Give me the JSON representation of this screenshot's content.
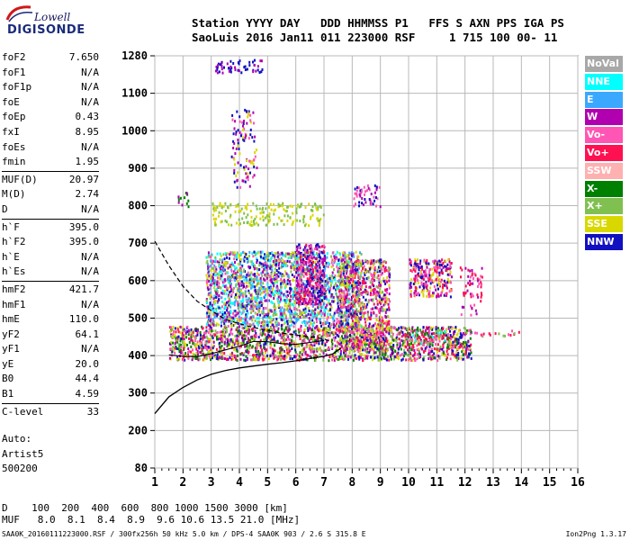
{
  "logo": {
    "line1": "Lowell",
    "line2": "DIGISONDE"
  },
  "header": {
    "line1": "Station YYYY DAY   DDD HHMMSS P1   FFS S AXN PPS IGA PS",
    "line2": "SaoLuis 2016 Jan11 011 223000 RSF     1 715 100 00- 11"
  },
  "params": {
    "group1": [
      {
        "name": "foF2",
        "value": "7.650"
      },
      {
        "name": "foF1",
        "value": "N/A"
      },
      {
        "name": "foF1p",
        "value": "N/A"
      },
      {
        "name": "foE",
        "value": "N/A"
      },
      {
        "name": "foEp",
        "value": "0.43"
      },
      {
        "name": "fxI",
        "value": "8.95"
      },
      {
        "name": "foEs",
        "value": "N/A"
      },
      {
        "name": "fmin",
        "value": "1.95"
      }
    ],
    "group2": [
      {
        "name": "MUF(D)",
        "value": "20.97"
      },
      {
        "name": "M(D)",
        "value": "2.74"
      },
      {
        "name": "D",
        "value": "N/A"
      }
    ],
    "group3": [
      {
        "name": "h`F",
        "value": "395.0"
      },
      {
        "name": "h`F2",
        "value": "395.0"
      },
      {
        "name": "h`E",
        "value": "N/A"
      },
      {
        "name": "h`Es",
        "value": "N/A"
      }
    ],
    "group4": [
      {
        "name": "hmF2",
        "value": "421.7"
      },
      {
        "name": "hmF1",
        "value": "N/A"
      },
      {
        "name": "hmE",
        "value": "110.0"
      },
      {
        "name": "yF2",
        "value": "64.1"
      },
      {
        "name": "yF1",
        "value": "N/A"
      },
      {
        "name": "yE",
        "value": "20.0"
      },
      {
        "name": "B0",
        "value": "44.4"
      },
      {
        "name": "B1",
        "value": "4.59"
      }
    ],
    "group5": [
      {
        "name": "C-level",
        "value": "33"
      }
    ]
  },
  "auto": {
    "line1": "Auto:",
    "line2": "Artist5",
    "line3": "500200"
  },
  "legend": [
    {
      "label": "NoVal",
      "color": "#a8a8a8"
    },
    {
      "label": "NNE",
      "color": "#00ffff"
    },
    {
      "label": "E",
      "color": "#3aa8ff"
    },
    {
      "label": "W",
      "color": "#b000b0"
    },
    {
      "label": "Vo-",
      "color": "#ff55b4"
    },
    {
      "label": "Vo+",
      "color": "#ff1050"
    },
    {
      "label": "SSW",
      "color": "#ffb0b0"
    },
    {
      "label": "X-",
      "color": "#008000"
    },
    {
      "label": "X+",
      "color": "#80c050"
    },
    {
      "label": "SSE",
      "color": "#d8d800"
    },
    {
      "label": "NNW",
      "color": "#1010c0"
    }
  ],
  "bottom": {
    "line1": "D    100  200  400  600  800 1000 1500 3000 [km]",
    "line2": "MUF   8.0  8.1  8.4  8.9  9.6 10.6 13.5 21.0 [MHz]"
  },
  "footer": {
    "left": "SAA0K_20160111223000.RSF / 300fx256h 50 kHz 5.0 km / DPS-4 SAA0K 903 / 2.6 S 315.8 E",
    "right": "Ion2Png 1.3.17"
  },
  "chart_data": {
    "type": "scatter",
    "title": "",
    "xlabel": "",
    "ylabel": "",
    "xlim": [
      1,
      16
    ],
    "ylim": [
      80,
      1280
    ],
    "x_ticks": [
      "1",
      "2",
      "3",
      "4",
      "5",
      "6",
      "7",
      "8",
      "9",
      "10",
      "11",
      "12",
      "13",
      "14",
      "15",
      "16"
    ],
    "y_ticks": [
      "80",
      "200",
      "300",
      "400",
      "500",
      "600",
      "700",
      "800",
      "900",
      "1000",
      "1100",
      "1280"
    ],
    "y_tick_values": [
      80,
      200,
      300,
      400,
      500,
      600,
      700,
      800,
      900,
      1000,
      1100,
      1280
    ],
    "grid": true,
    "traced_profile": {
      "name": "profile",
      "x": [
        1.0,
        1.5,
        2.0,
        2.5,
        3.0,
        3.5,
        4.0,
        4.5,
        5.0,
        5.5,
        6.0,
        6.5,
        7.0,
        7.3,
        7.6
      ],
      "y": [
        245,
        290,
        315,
        335,
        350,
        360,
        367,
        372,
        377,
        381,
        386,
        392,
        398,
        404,
        420
      ]
    },
    "model_curve": {
      "name": "model",
      "x": [
        1.0,
        1.5,
        2.0,
        2.5,
        3.0,
        3.5,
        4.0,
        4.5,
        5.0,
        5.5,
        6.0,
        6.5,
        7.0,
        7.3
      ],
      "y": [
        705,
        640,
        585,
        545,
        520,
        497,
        485,
        475,
        468,
        460,
        455,
        450,
        445,
        435
      ]
    },
    "trace_solid": {
      "name": "trace",
      "x": [
        1.5,
        2.0,
        2.5,
        3.0,
        3.5,
        4.0,
        4.5,
        5.0,
        5.5,
        6.0,
        6.5,
        7.0
      ],
      "y": [
        402,
        398,
        397,
        405,
        415,
        425,
        438,
        437,
        432,
        430,
        435,
        440
      ]
    },
    "echo_clusters": [
      {
        "x": [
          1.5,
          12.2
        ],
        "y": [
          390,
          480
        ],
        "density": 0.9,
        "colors": [
          "#ff1050",
          "#ff55b4",
          "#80c050",
          "#d8d800",
          "#b000b0",
          "#1010c0",
          "#008000"
        ]
      },
      {
        "x": [
          2.8,
          8.3
        ],
        "y": [
          480,
          680
        ],
        "density": 0.9,
        "colors": [
          "#1010c0",
          "#b000b0",
          "#d8d800",
          "#ff55b4",
          "#3aa8ff",
          "#00ffff",
          "#80c050"
        ]
      },
      {
        "x": [
          6.0,
          7.0
        ],
        "y": [
          540,
          700
        ],
        "density": 0.9,
        "colors": [
          "#b000b0",
          "#ff55b4",
          "#ff1050",
          "#1010c0"
        ]
      },
      {
        "x": [
          7.5,
          9.3
        ],
        "y": [
          420,
          660
        ],
        "density": 0.8,
        "colors": [
          "#d8d800",
          "#ff1050",
          "#ff55b4",
          "#b000b0",
          "#1010c0",
          "#80c050"
        ]
      },
      {
        "x": [
          10.0,
          11.5
        ],
        "y": [
          560,
          660
        ],
        "density": 0.8,
        "colors": [
          "#ff55b4",
          "#b000b0",
          "#ff1050",
          "#d8d800",
          "#1010c0"
        ]
      },
      {
        "x": [
          10.0,
          11.3
        ],
        "y": [
          430,
          470
        ],
        "density": 0.6,
        "colors": [
          "#ff1050",
          "#ff55b4",
          "#80c050",
          "#008000",
          "#00ffff"
        ]
      },
      {
        "x": [
          3.0,
          7.0
        ],
        "y": [
          750,
          810
        ],
        "density": 0.35,
        "colors": [
          "#d8d800",
          "#80c050"
        ]
      },
      {
        "x": [
          3.7,
          4.6
        ],
        "y": [
          850,
          1060
        ],
        "density": 0.25,
        "colors": [
          "#1010c0",
          "#b000b0",
          "#d8d800",
          "#ff55b4"
        ]
      },
      {
        "x": [
          3.1,
          4.8
        ],
        "y": [
          1200,
          1265
        ],
        "density": 0.4,
        "colors": [
          "#1010c0",
          "#b000b0"
        ]
      },
      {
        "x": [
          8.0,
          9.0
        ],
        "y": [
          800,
          860
        ],
        "density": 0.4,
        "colors": [
          "#b000b0",
          "#ff55b4",
          "#1010c0"
        ]
      },
      {
        "x": [
          1.8,
          2.2
        ],
        "y": [
          800,
          850
        ],
        "density": 0.3,
        "colors": [
          "#008000",
          "#b000b0"
        ]
      },
      {
        "x": [
          11.8,
          12.6
        ],
        "y": [
          510,
          640
        ],
        "density": 0.25,
        "colors": [
          "#ff1050",
          "#ff55b4",
          "#b000b0"
        ]
      },
      {
        "x": [
          12.0,
          14.0
        ],
        "y": [
          455,
          470
        ],
        "density": 0.3,
        "colors": [
          "#ff1050",
          "#ff55b4",
          "#80c050"
        ]
      }
    ]
  }
}
